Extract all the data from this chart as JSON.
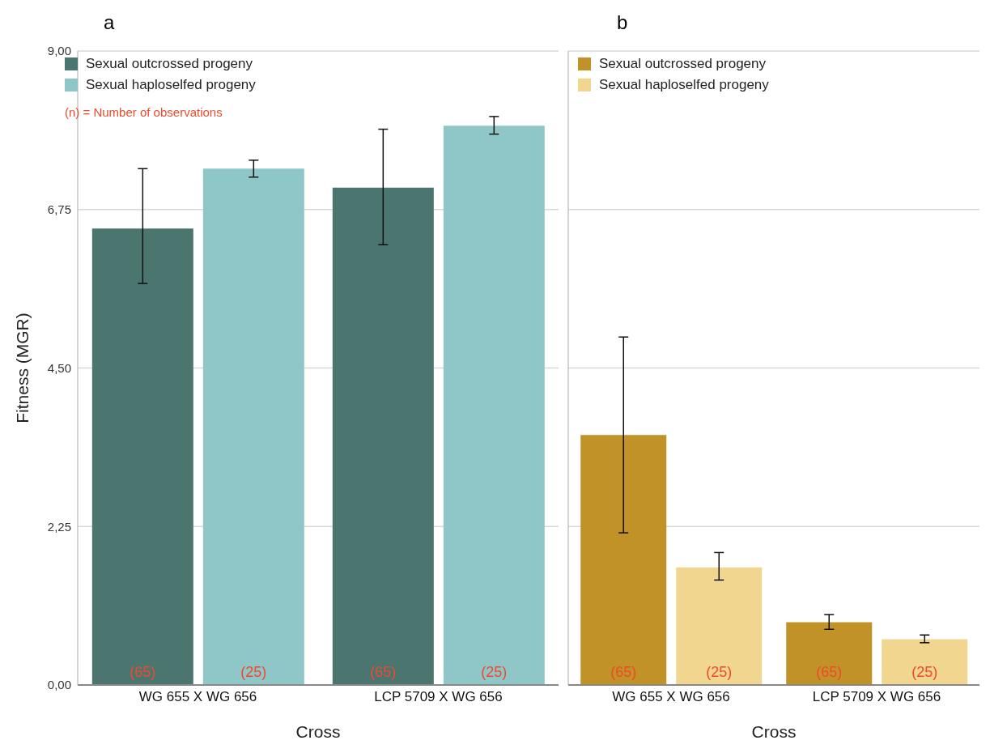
{
  "chart_data": [
    {
      "type": "bar",
      "title": "a",
      "xlabel": "Cross",
      "ylabel": "Fitness (MGR)",
      "categories": [
        "WG 655 X WG 656",
        "LCP 5709 X WG 656"
      ],
      "series": [
        {
          "name": "Sexual outcrossed progeny",
          "color": "#4b756f",
          "values": [
            6.48,
            7.06
          ],
          "errors": [
            [
              5.7,
              7.33
            ],
            [
              6.25,
              7.89
            ]
          ]
        },
        {
          "name": "Sexual haploselfed progeny",
          "color": "#8fc6c8",
          "values": [
            7.33,
            7.94
          ],
          "errors": [
            [
              7.21,
              7.45
            ],
            [
              7.82,
              8.07
            ]
          ]
        }
      ],
      "ylim": [
        0,
        9
      ],
      "yticks": [
        {
          "value": 0,
          "label": "0,00"
        },
        {
          "value": 2.25,
          "label": "2,25"
        },
        {
          "value": 4.5,
          "label": "4,50"
        },
        {
          "value": 6.75,
          "label": "6,75"
        },
        {
          "value": 9,
          "label": "9,00"
        }
      ],
      "grid": "y",
      "legend": "top left",
      "annotations": [
        "(n) = Number of observations",
        "(65)",
        "(25)",
        "(65)",
        "(25)"
      ]
    },
    {
      "type": "bar",
      "title": "b",
      "xlabel": "Cross",
      "categories": [
        "WG 655 X WG 656",
        "LCP 5709 X WG 656"
      ],
      "series": [
        {
          "name": "Sexual outcrossed progeny",
          "color": "#c09227",
          "values": [
            3.55,
            0.89
          ],
          "errors": [
            [
              2.16,
              4.94
            ],
            [
              0.79,
              1.0
            ]
          ]
        },
        {
          "name": "Sexual haploselfed progeny",
          "color": "#f0d68e",
          "values": [
            1.67,
            0.65
          ],
          "errors": [
            [
              1.49,
              1.88
            ],
            [
              0.6,
              0.71
            ]
          ]
        }
      ],
      "ylim": [
        0,
        9
      ],
      "yticks": [
        0,
        2.25,
        4.5,
        6.75,
        9
      ],
      "grid": "y",
      "legend": "top left",
      "tick_labels": "x",
      "annotations": [
        "(65)",
        "(25)",
        "(65)",
        "(25)"
      ]
    }
  ]
}
